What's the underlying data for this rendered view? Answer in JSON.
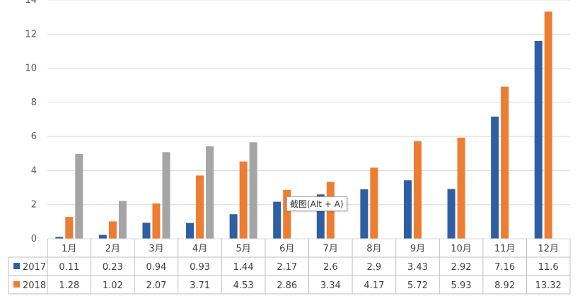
{
  "chart_data": {
    "type": "bar",
    "categories": [
      "1月",
      "2月",
      "3月",
      "4月",
      "5月",
      "6月",
      "7月",
      "8月",
      "9月",
      "10月",
      "11月",
      "12月"
    ],
    "series": [
      {
        "name": "2017",
        "color": "#2e5fa3",
        "values": [
          0.11,
          0.23,
          0.94,
          0.93,
          1.44,
          2.17,
          2.6,
          2.9,
          3.43,
          2.92,
          7.16,
          11.6
        ],
        "labels": [
          "0.11",
          "0.23",
          "0.94",
          "0.93",
          "1.44",
          "2.17",
          "2.6",
          "2.9",
          "3.43",
          "2.92",
          "7.16",
          "11.6"
        ]
      },
      {
        "name": "2018",
        "color": "#ed7d31",
        "values": [
          1.28,
          1.02,
          2.07,
          3.71,
          4.53,
          2.86,
          3.34,
          4.17,
          5.72,
          5.93,
          8.92,
          13.32
        ],
        "labels": [
          "1.28",
          "1.02",
          "2.07",
          "3.71",
          "4.53",
          "2.86",
          "3.34",
          "4.17",
          "5.72",
          "5.93",
          "8.92",
          "13.32"
        ]
      },
      {
        "name": "",
        "color": "#a5a5a5",
        "values": [
          4.97,
          2.22,
          5.08,
          5.42,
          5.66,
          null,
          null,
          null,
          null,
          null,
          null,
          null
        ]
      }
    ],
    "yticks": [
      "0",
      "2",
      "4",
      "6",
      "8",
      "10",
      "12",
      "14"
    ],
    "ylim": [
      0,
      14
    ],
    "grid": true
  },
  "tooltip": "截图(Alt + A)"
}
